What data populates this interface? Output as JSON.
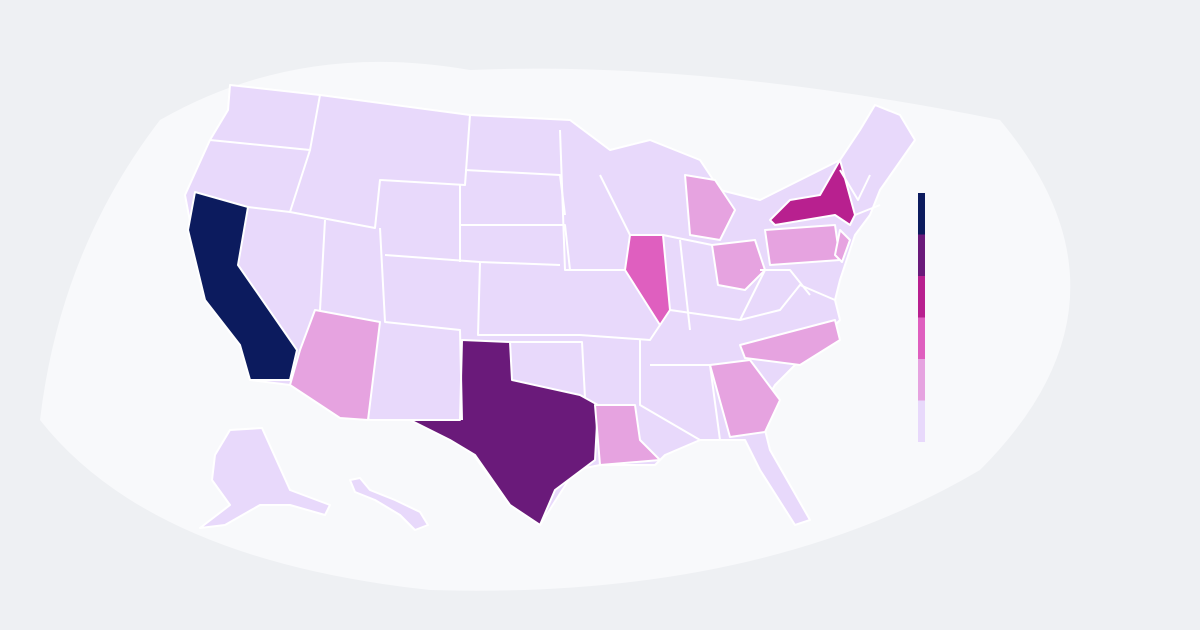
{
  "legend": {
    "colors": [
      "#0c1b5e",
      "#6a1a7a",
      "#b8208f",
      "#df5fbf",
      "#e6a3e0",
      "#e8d9fb"
    ]
  },
  "map": {
    "regions": [
      {
        "color": "#e8d9fb"
      },
      {
        "color": "#e8d9fb"
      },
      {
        "color": "#e8d9fb"
      },
      {
        "color": "#0c1b5e"
      },
      {
        "color": "#6a1a7a"
      },
      {
        "color": "#b8208f"
      },
      {
        "color": "#df5fbf"
      },
      {
        "color": "#e6a3e0"
      },
      {
        "color": "#e6a3e0"
      },
      {
        "color": "#e6a3e0"
      },
      {
        "color": "#e6a3e0"
      },
      {
        "color": "#e6a3e0"
      },
      {
        "color": "#e6a3e0"
      },
      {
        "color": "#e6a3e0"
      },
      {
        "color": "#e6a3e0"
      }
    ]
  }
}
